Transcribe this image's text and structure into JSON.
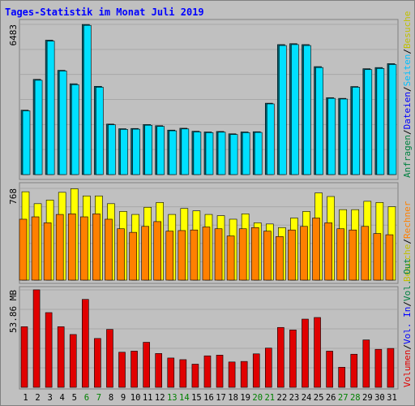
{
  "title": "Tages-Statistik im Monat Juli 2019",
  "colors": {
    "background": "#c0c0c0",
    "plot_bg": "#c0c0c0",
    "grid": "#a8a8a8",
    "border": "#808080",
    "title": "#0000ff",
    "hits": "#00e0ff",
    "files": "#00c0ff",
    "pages": "#00ffff",
    "visits": "#ffff00",
    "sites": "#ff8000",
    "kbytes": "#e00000",
    "weekend_label": "#008000"
  },
  "chart_data": [
    {
      "type": "bar",
      "panel": "top",
      "ymax_label": "6483",
      "ylim": [
        0,
        6483
      ],
      "grid": true,
      "categories": [
        "1",
        "2",
        "3",
        "4",
        "5",
        "6",
        "7",
        "8",
        "9",
        "10",
        "11",
        "12",
        "13",
        "14",
        "15",
        "16",
        "17",
        "18",
        "19",
        "20",
        "21",
        "22",
        "23",
        "24",
        "25",
        "26",
        "27",
        "28",
        "29",
        "30",
        "31"
      ],
      "weekend_days": [
        "6",
        "7",
        "13",
        "14",
        "20",
        "21",
        "27",
        "28"
      ],
      "legend": [
        {
          "label": "Anfragen",
          "color": "#008040"
        },
        {
          "label": "/",
          "color": "#000000"
        },
        {
          "label": "Dateien",
          "color": "#0000ff"
        },
        {
          "label": "/",
          "color": "#000000"
        },
        {
          "label": "Seiten",
          "color": "#00c0ff"
        },
        {
          "label": "/",
          "color": "#000000"
        },
        {
          "label": "Besuche",
          "color": "#c0c000"
        }
      ],
      "series": [
        {
          "name": "Anfragen",
          "values": [
            2780,
            4110,
            5800,
            4500,
            3920,
            6480,
            3810,
            2180,
            1980,
            1990,
            2160,
            2110,
            1920,
            2000,
            1870,
            1840,
            1860,
            1760,
            1840,
            1850,
            3080,
            5610,
            5650,
            5610,
            4660,
            3320,
            3290,
            3800,
            4570,
            4620,
            4790
          ]
        },
        {
          "name": "Dateien",
          "values": [
            2750,
            4070,
            5760,
            4470,
            3880,
            6440,
            3770,
            2150,
            1950,
            1960,
            2130,
            2080,
            1890,
            1970,
            1840,
            1810,
            1830,
            1730,
            1810,
            1820,
            3050,
            5570,
            5610,
            5570,
            4620,
            3290,
            3260,
            3770,
            4530,
            4580,
            4750
          ]
        }
      ]
    },
    {
      "type": "bar",
      "panel": "middle",
      "ymax_label": "768",
      "ylim": [
        0,
        768
      ],
      "grid": true,
      "categories": [
        "1",
        "2",
        "3",
        "4",
        "5",
        "6",
        "7",
        "8",
        "9",
        "10",
        "11",
        "12",
        "13",
        "14",
        "15",
        "16",
        "17",
        "18",
        "19",
        "20",
        "21",
        "22",
        "23",
        "24",
        "25",
        "26",
        "27",
        "28",
        "29",
        "30",
        "31"
      ],
      "legend": [
        {
          "label": "Besuche",
          "color": "#c0c000"
        },
        {
          "label": "/",
          "color": "#000000"
        },
        {
          "label": "Rechner",
          "color": "#ff8000"
        }
      ],
      "series": [
        {
          "name": "Besuche",
          "values": [
            740,
            640,
            670,
            735,
            765,
            705,
            705,
            640,
            575,
            550,
            610,
            650,
            550,
            600,
            580,
            550,
            540,
            510,
            555,
            480,
            470,
            440,
            520,
            575,
            730,
            700,
            590,
            590,
            660,
            650,
            615
          ]
        },
        {
          "name": "Rechner",
          "values": [
            510,
            530,
            480,
            550,
            555,
            530,
            555,
            510,
            430,
            400,
            450,
            490,
            410,
            415,
            420,
            445,
            430,
            370,
            430,
            440,
            410,
            365,
            420,
            450,
            520,
            480,
            430,
            420,
            450,
            390,
            380
          ]
        }
      ]
    },
    {
      "type": "bar",
      "panel": "bottom",
      "ymax_label": "53.86 MB",
      "ylim": [
        0,
        53.86
      ],
      "grid": true,
      "categories": [
        "1",
        "2",
        "3",
        "4",
        "5",
        "6",
        "7",
        "8",
        "9",
        "10",
        "11",
        "12",
        "13",
        "14",
        "15",
        "16",
        "17",
        "18",
        "19",
        "20",
        "21",
        "22",
        "23",
        "24",
        "25",
        "26",
        "27",
        "28",
        "29",
        "30",
        "31"
      ],
      "legend": [
        {
          "label": "Volumen",
          "color": "#e00000"
        },
        {
          "label": "/",
          "color": "#000000"
        },
        {
          "label": "Vol. In",
          "color": "#0000ff"
        },
        {
          "label": "/",
          "color": "#000000"
        },
        {
          "label": "Vol. Out",
          "color": "#008040"
        }
      ],
      "series": [
        {
          "name": "Volumen",
          "values": [
            33.5,
            53.9,
            41.3,
            33.5,
            29.2,
            48.6,
            27.0,
            32.0,
            19.4,
            20.0,
            24.9,
            18.7,
            16.2,
            15.3,
            12.8,
            17.4,
            17.8,
            14.0,
            14.3,
            18.5,
            21.7,
            33.1,
            31.7,
            37.7,
            38.6,
            20.0,
            11.1,
            18.3,
            26.2,
            21.0,
            21.5
          ]
        }
      ]
    }
  ]
}
